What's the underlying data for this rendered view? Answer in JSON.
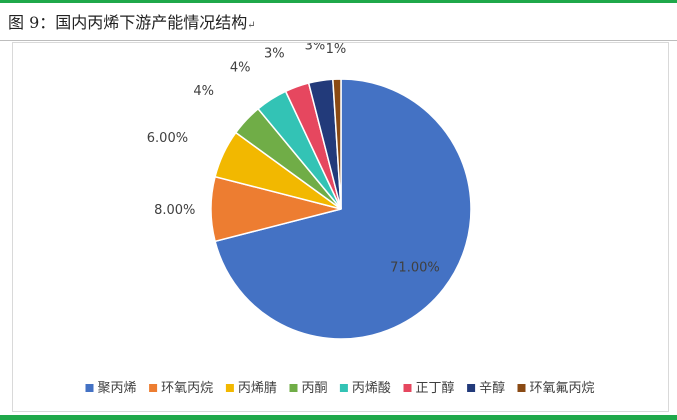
{
  "caption": {
    "text": "图 9：国内丙烯下游产能情况结构",
    "return_mark": "↵"
  },
  "chart_data": {
    "type": "pie",
    "title": "",
    "legend_position": "bottom",
    "categories": [
      "聚丙烯",
      "环氧丙烷",
      "丙烯腈",
      "丙酮",
      "丙烯酸",
      "正丁醇",
      "辛醇",
      "环氧氟丙烷"
    ],
    "values": [
      71,
      8,
      6,
      4,
      4,
      3,
      3,
      1
    ],
    "data_labels": [
      "71.00%",
      "8.00%",
      "6.00%",
      "4%",
      "4%",
      "3%",
      "3%",
      "1%"
    ],
    "colors": [
      "#4472c4",
      "#ed7d31",
      "#f2b800",
      "#70ad47",
      "#33c3b5",
      "#e6475f",
      "#223a7a",
      "#8a4a14"
    ]
  }
}
